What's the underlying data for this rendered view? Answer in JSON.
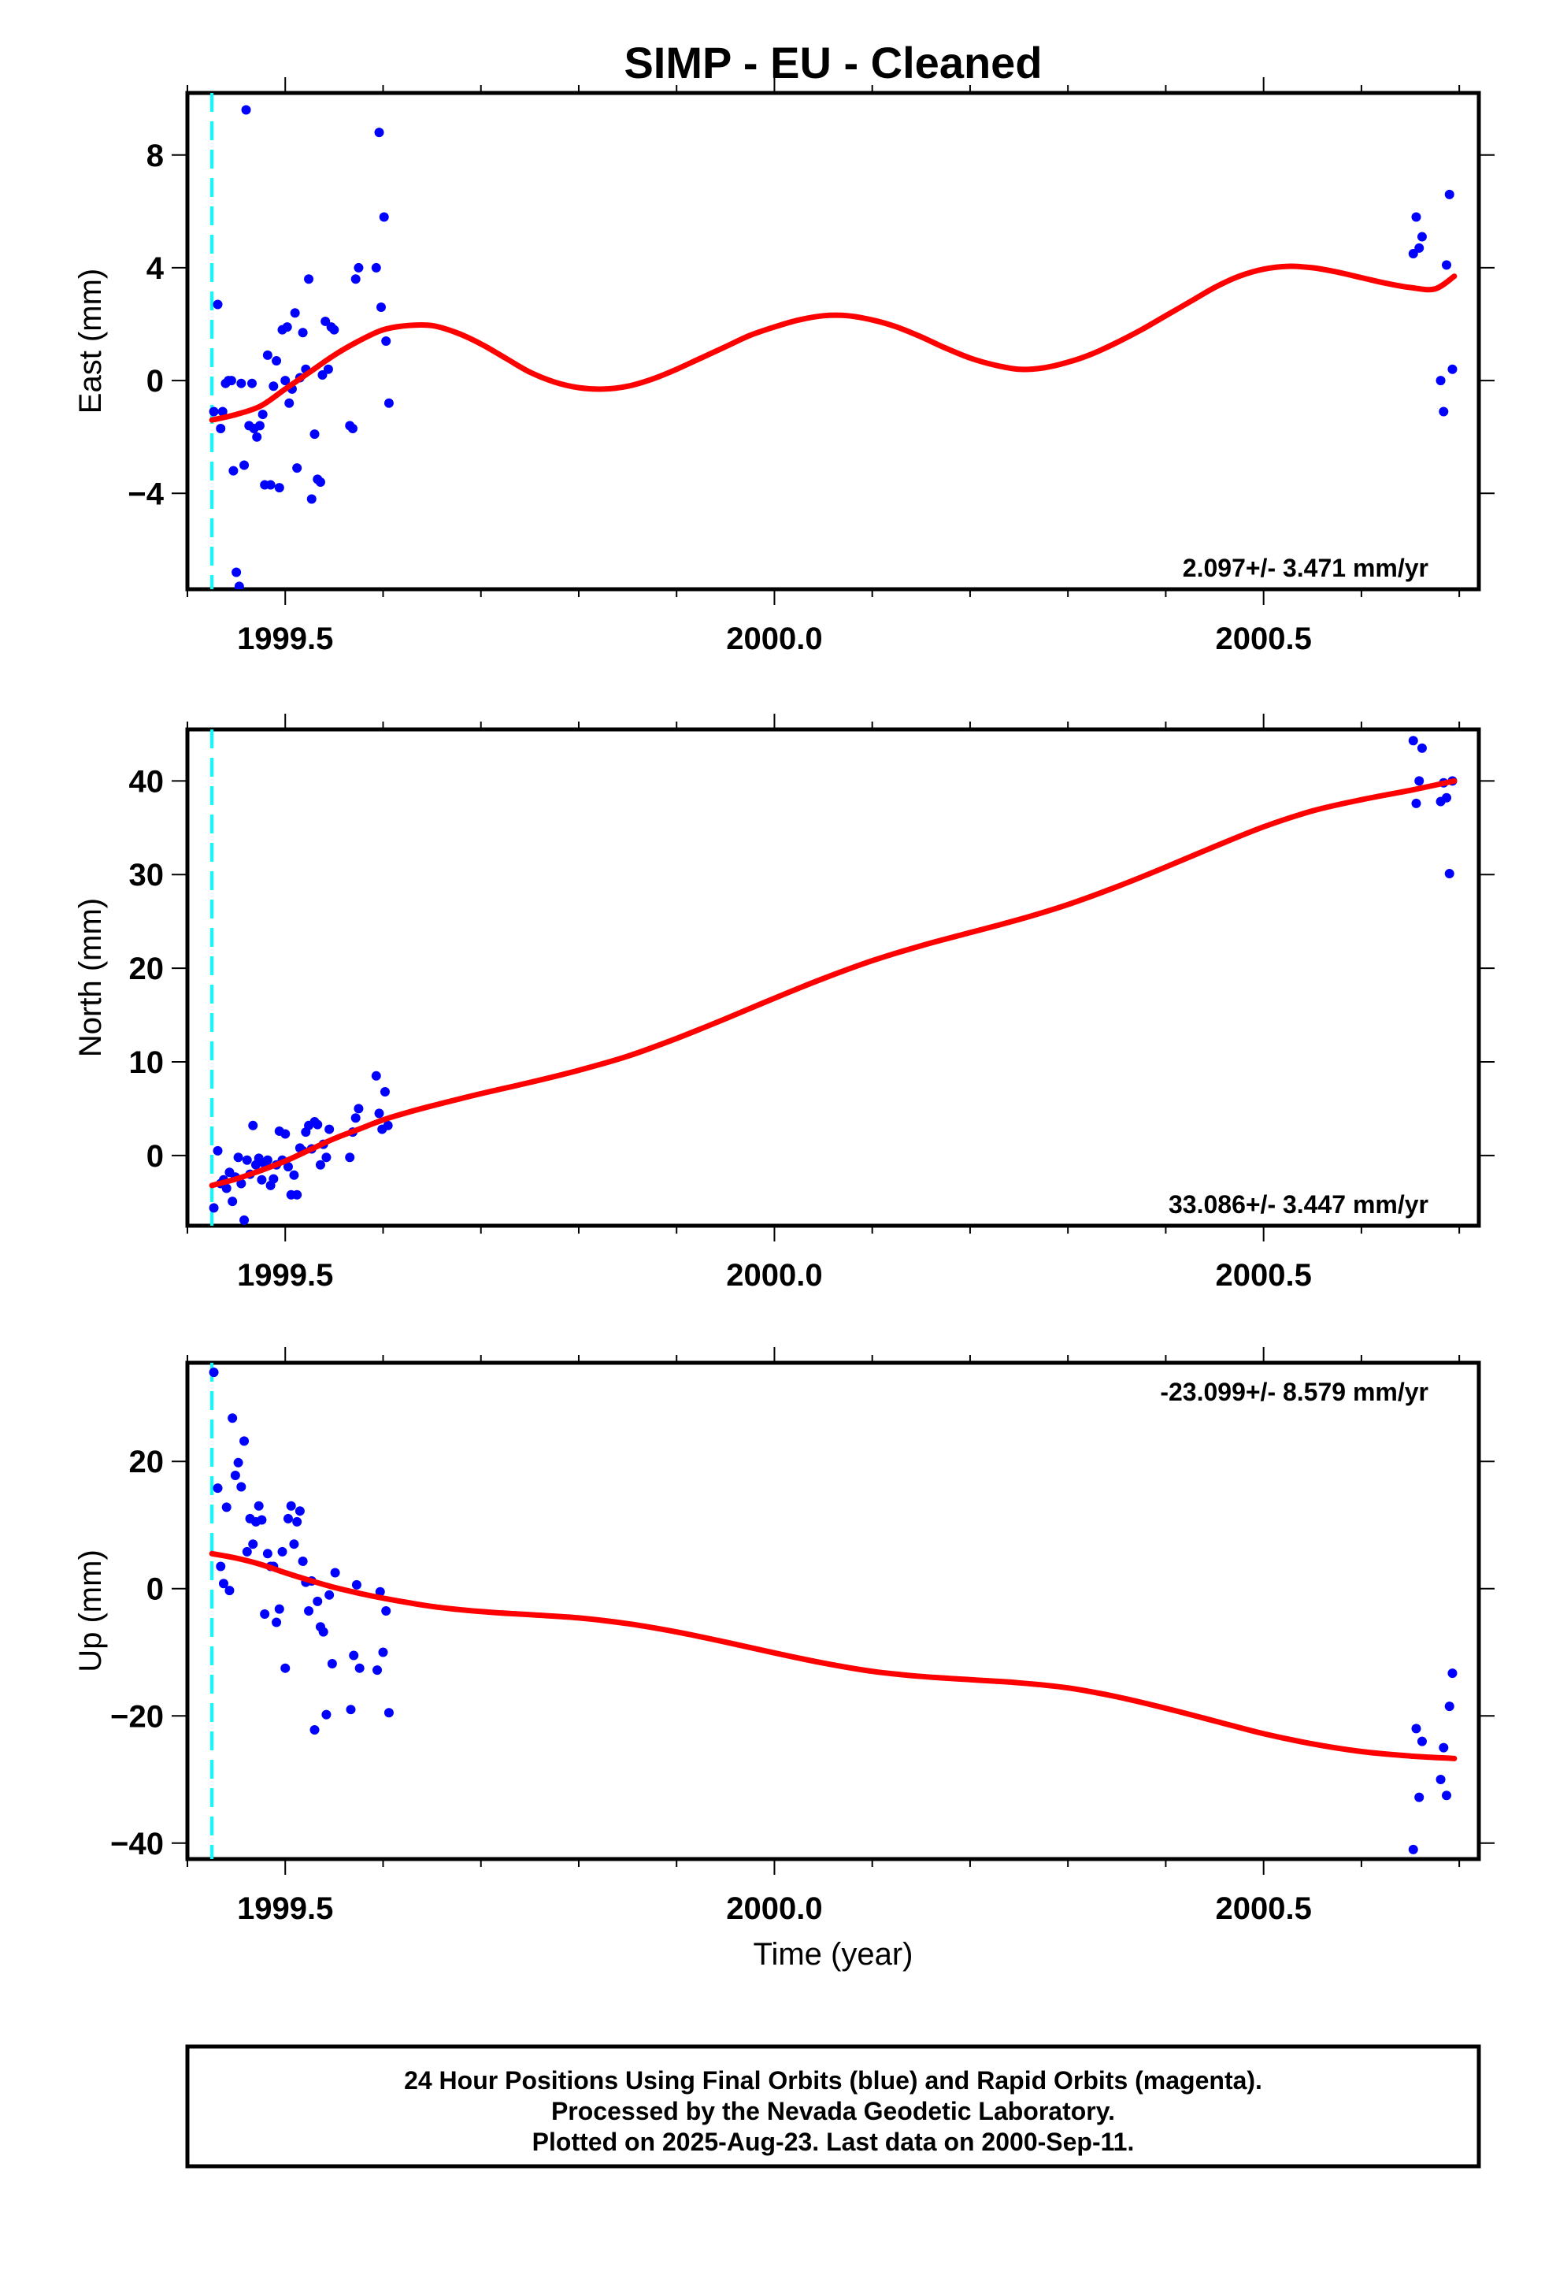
{
  "title": "SIMP  - EU - Cleaned",
  "colors": {
    "final_orbits": "#0000ff",
    "rapid_orbits": "#ff00ff",
    "trend": "#ff0000",
    "marker_line": "#00ffff"
  },
  "x_axis": {
    "label": "Time (year)",
    "range": [
      1999.4,
      2000.72
    ],
    "major_ticks": [
      1999.5,
      2000.0,
      2000.5
    ],
    "major_tick_labels": [
      "1999.5",
      "2000.0",
      "2000.5"
    ],
    "minor_step": 0.1
  },
  "marker_x": 1999.425,
  "footer": {
    "lines": [
      "24 Hour Positions Using Final Orbits (blue) and Rapid Orbits (magenta).",
      "Processed by the Nevada Geodetic Laboratory.",
      "Plotted on 2025-Aug-23. Last data on 2000-Sep-11."
    ]
  },
  "chart_data": [
    {
      "type": "scatter",
      "id": "east",
      "ylabel": "East (mm)",
      "ylim": [
        -7.4,
        10.2
      ],
      "yticks": [
        -4,
        0,
        4,
        8
      ],
      "ytick_labels": [
        "−4",
        "0",
        "4",
        "8"
      ],
      "rate_label": "2.097+/- 3.471 mm/yr",
      "rate_position": "bottom-right",
      "points": [
        [
          1999.427,
          -1.1
        ],
        [
          1999.431,
          2.7
        ],
        [
          1999.434,
          -1.7
        ],
        [
          1999.436,
          -1.1
        ],
        [
          1999.439,
          -0.1
        ],
        [
          1999.442,
          0.0
        ],
        [
          1999.445,
          0.0
        ],
        [
          1999.447,
          -3.2
        ],
        [
          1999.45,
          -6.8
        ],
        [
          1999.453,
          -7.3
        ],
        [
          1999.455,
          -0.1
        ],
        [
          1999.458,
          -3.0
        ],
        [
          1999.46,
          9.6
        ],
        [
          1999.463,
          -1.6
        ],
        [
          1999.466,
          -0.1
        ],
        [
          1999.468,
          -1.7
        ],
        [
          1999.471,
          -2.0
        ],
        [
          1999.474,
          -1.6
        ],
        [
          1999.477,
          -1.2
        ],
        [
          1999.479,
          -3.7
        ],
        [
          1999.482,
          0.9
        ],
        [
          1999.485,
          -3.7
        ],
        [
          1999.488,
          -0.2
        ],
        [
          1999.491,
          0.7
        ],
        [
          1999.494,
          -3.8
        ],
        [
          1999.497,
          1.8
        ],
        [
          1999.5,
          0.0
        ],
        [
          1999.502,
          1.9
        ],
        [
          1999.504,
          -0.8
        ],
        [
          1999.507,
          -0.3
        ],
        [
          1999.51,
          2.4
        ],
        [
          1999.512,
          -3.1
        ],
        [
          1999.515,
          0.1
        ],
        [
          1999.518,
          1.7
        ],
        [
          1999.521,
          0.4
        ],
        [
          1999.524,
          3.6
        ],
        [
          1999.527,
          -4.2
        ],
        [
          1999.53,
          -1.9
        ],
        [
          1999.533,
          -3.5
        ],
        [
          1999.536,
          -3.6
        ],
        [
          1999.538,
          0.2
        ],
        [
          1999.541,
          2.1
        ],
        [
          1999.544,
          0.4
        ],
        [
          1999.547,
          1.9
        ],
        [
          1999.55,
          1.8
        ],
        [
          1999.566,
          -1.6
        ],
        [
          1999.569,
          -1.7
        ],
        [
          1999.572,
          3.6
        ],
        [
          1999.575,
          4.0
        ],
        [
          1999.593,
          4.0
        ],
        [
          1999.596,
          8.8
        ],
        [
          1999.598,
          2.6
        ],
        [
          1999.601,
          5.8
        ],
        [
          1999.603,
          1.4
        ],
        [
          1999.606,
          -0.8
        ],
        [
          2000.653,
          4.5
        ],
        [
          2000.656,
          5.8
        ],
        [
          2000.659,
          4.7
        ],
        [
          2000.662,
          5.1
        ],
        [
          2000.681,
          0.0
        ],
        [
          2000.684,
          -1.1
        ],
        [
          2000.687,
          4.1
        ],
        [
          2000.69,
          6.6
        ],
        [
          2000.693,
          0.4
        ]
      ],
      "trend": [
        [
          1999.425,
          -1.4
        ],
        [
          1999.45,
          -1.2
        ],
        [
          1999.475,
          -0.9
        ],
        [
          1999.5,
          -0.3
        ],
        [
          1999.525,
          0.3
        ],
        [
          1999.55,
          0.9
        ],
        [
          1999.575,
          1.4
        ],
        [
          1999.6,
          1.8
        ],
        [
          1999.625,
          1.95
        ],
        [
          1999.65,
          1.95
        ],
        [
          1999.675,
          1.7
        ],
        [
          1999.7,
          1.3
        ],
        [
          1999.725,
          0.8
        ],
        [
          1999.75,
          0.3
        ],
        [
          1999.775,
          -0.05
        ],
        [
          1999.8,
          -0.25
        ],
        [
          1999.825,
          -0.3
        ],
        [
          1999.85,
          -0.2
        ],
        [
          1999.875,
          0.05
        ],
        [
          1999.9,
          0.4
        ],
        [
          1999.925,
          0.8
        ],
        [
          1999.95,
          1.2
        ],
        [
          1999.975,
          1.6
        ],
        [
          2000.0,
          1.9
        ],
        [
          2000.025,
          2.15
        ],
        [
          2000.05,
          2.3
        ],
        [
          2000.075,
          2.3
        ],
        [
          2000.1,
          2.15
        ],
        [
          2000.125,
          1.9
        ],
        [
          2000.15,
          1.55
        ],
        [
          2000.175,
          1.15
        ],
        [
          2000.2,
          0.8
        ],
        [
          2000.225,
          0.55
        ],
        [
          2000.25,
          0.4
        ],
        [
          2000.275,
          0.45
        ],
        [
          2000.3,
          0.65
        ],
        [
          2000.325,
          0.95
        ],
        [
          2000.35,
          1.35
        ],
        [
          2000.375,
          1.8
        ],
        [
          2000.4,
          2.3
        ],
        [
          2000.425,
          2.8
        ],
        [
          2000.45,
          3.3
        ],
        [
          2000.475,
          3.7
        ],
        [
          2000.5,
          3.95
        ],
        [
          2000.525,
          4.05
        ],
        [
          2000.55,
          4.0
        ],
        [
          2000.575,
          3.85
        ],
        [
          2000.6,
          3.65
        ],
        [
          2000.625,
          3.45
        ],
        [
          2000.65,
          3.3
        ],
        [
          2000.675,
          3.25
        ],
        [
          2000.695,
          3.7
        ]
      ]
    },
    {
      "type": "scatter",
      "id": "north",
      "ylabel": "North (mm)",
      "ylim": [
        -7.5,
        45.5
      ],
      "yticks": [
        0,
        10,
        20,
        30,
        40
      ],
      "ytick_labels": [
        "0",
        "10",
        "20",
        "30",
        "40"
      ],
      "rate_label": "33.086+/- 3.447 mm/yr",
      "rate_position": "bottom-right",
      "points": [
        [
          1999.427,
          -5.6
        ],
        [
          1999.431,
          0.5
        ],
        [
          1999.434,
          -3.0
        ],
        [
          1999.437,
          -2.6
        ],
        [
          1999.44,
          -3.5
        ],
        [
          1999.443,
          -1.8
        ],
        [
          1999.446,
          -4.9
        ],
        [
          1999.449,
          -2.3
        ],
        [
          1999.452,
          -0.2
        ],
        [
          1999.455,
          -3.0
        ],
        [
          1999.458,
          -6.9
        ],
        [
          1999.461,
          -0.5
        ],
        [
          1999.464,
          -2.0
        ],
        [
          1999.467,
          3.2
        ],
        [
          1999.47,
          -1.0
        ],
        [
          1999.473,
          -0.3
        ],
        [
          1999.476,
          -2.6
        ],
        [
          1999.479,
          -0.9
        ],
        [
          1999.482,
          -0.5
        ],
        [
          1999.485,
          -3.2
        ],
        [
          1999.488,
          -2.5
        ],
        [
          1999.491,
          -1.0
        ],
        [
          1999.494,
          2.6
        ],
        [
          1999.497,
          -0.5
        ],
        [
          1999.5,
          2.3
        ],
        [
          1999.503,
          -1.2
        ],
        [
          1999.506,
          -4.2
        ],
        [
          1999.509,
          -2.1
        ],
        [
          1999.512,
          -4.2
        ],
        [
          1999.515,
          0.8
        ],
        [
          1999.518,
          0.5
        ],
        [
          1999.521,
          2.5
        ],
        [
          1999.524,
          3.2
        ],
        [
          1999.527,
          0.7
        ],
        [
          1999.53,
          3.6
        ],
        [
          1999.533,
          3.3
        ],
        [
          1999.536,
          -1.0
        ],
        [
          1999.539,
          1.2
        ],
        [
          1999.542,
          -0.2
        ],
        [
          1999.545,
          2.8
        ],
        [
          1999.566,
          -0.2
        ],
        [
          1999.569,
          2.5
        ],
        [
          1999.572,
          4.0
        ],
        [
          1999.575,
          5.0
        ],
        [
          1999.593,
          8.5
        ],
        [
          1999.596,
          4.5
        ],
        [
          1999.599,
          2.8
        ],
        [
          1999.602,
          6.8
        ],
        [
          1999.605,
          3.2
        ],
        [
          2000.653,
          44.3
        ],
        [
          2000.656,
          37.6
        ],
        [
          2000.659,
          40.0
        ],
        [
          2000.662,
          43.5
        ],
        [
          2000.681,
          37.8
        ],
        [
          2000.684,
          39.8
        ],
        [
          2000.687,
          38.2
        ],
        [
          2000.69,
          30.1
        ],
        [
          2000.693,
          40.0
        ]
      ],
      "trend": [
        [
          1999.425,
          -3.2
        ],
        [
          1999.45,
          -2.5
        ],
        [
          1999.475,
          -1.6
        ],
        [
          1999.5,
          -0.6
        ],
        [
          1999.525,
          0.6
        ],
        [
          1999.55,
          1.8
        ],
        [
          1999.575,
          2.8
        ],
        [
          1999.6,
          3.8
        ],
        [
          1999.625,
          4.6
        ],
        [
          1999.65,
          5.3
        ],
        [
          1999.7,
          6.6
        ],
        [
          1999.75,
          7.8
        ],
        [
          1999.8,
          9.1
        ],
        [
          1999.85,
          10.6
        ],
        [
          1999.9,
          12.5
        ],
        [
          1999.95,
          14.6
        ],
        [
          2000.0,
          16.8
        ],
        [
          2000.05,
          18.9
        ],
        [
          2000.1,
          20.8
        ],
        [
          2000.15,
          22.4
        ],
        [
          2000.2,
          23.8
        ],
        [
          2000.25,
          25.2
        ],
        [
          2000.3,
          26.8
        ],
        [
          2000.35,
          28.7
        ],
        [
          2000.4,
          30.8
        ],
        [
          2000.45,
          33.0
        ],
        [
          2000.5,
          35.1
        ],
        [
          2000.55,
          36.8
        ],
        [
          2000.6,
          38.0
        ],
        [
          2000.65,
          39.0
        ],
        [
          2000.695,
          40.0
        ]
      ]
    },
    {
      "type": "scatter",
      "id": "up",
      "ylabel": "Up (mm)",
      "ylim": [
        -42.5,
        35.5
      ],
      "yticks": [
        -40,
        -20,
        0,
        20
      ],
      "ytick_labels": [
        "−40",
        "−20",
        "0",
        "20"
      ],
      "rate_label": "-23.099+/- 8.579 mm/yr",
      "rate_position": "top-right",
      "points": [
        [
          1999.427,
          34.0
        ],
        [
          1999.431,
          15.8
        ],
        [
          1999.434,
          3.5
        ],
        [
          1999.437,
          0.8
        ],
        [
          1999.44,
          12.8
        ],
        [
          1999.443,
          -0.3
        ],
        [
          1999.446,
          26.8
        ],
        [
          1999.449,
          17.8
        ],
        [
          1999.452,
          19.8
        ],
        [
          1999.455,
          16.0
        ],
        [
          1999.458,
          23.2
        ],
        [
          1999.461,
          5.8
        ],
        [
          1999.464,
          11.0
        ],
        [
          1999.467,
          7.0
        ],
        [
          1999.47,
          10.5
        ],
        [
          1999.473,
          13.0
        ],
        [
          1999.476,
          10.8
        ],
        [
          1999.479,
          -4.0
        ],
        [
          1999.482,
          5.5
        ],
        [
          1999.485,
          3.5
        ],
        [
          1999.488,
          3.5
        ],
        [
          1999.491,
          -5.3
        ],
        [
          1999.494,
          -3.2
        ],
        [
          1999.497,
          5.8
        ],
        [
          1999.5,
          -12.5
        ],
        [
          1999.503,
          11.0
        ],
        [
          1999.506,
          13.0
        ],
        [
          1999.509,
          7.0
        ],
        [
          1999.512,
          10.5
        ],
        [
          1999.515,
          12.2
        ],
        [
          1999.518,
          4.3
        ],
        [
          1999.521,
          1.0
        ],
        [
          1999.524,
          -3.5
        ],
        [
          1999.527,
          1.2
        ],
        [
          1999.53,
          -22.2
        ],
        [
          1999.533,
          -2.0
        ],
        [
          1999.536,
          -6.0
        ],
        [
          1999.539,
          -6.8
        ],
        [
          1999.542,
          -19.8
        ],
        [
          1999.545,
          -1.0
        ],
        [
          1999.548,
          -11.8
        ],
        [
          1999.551,
          2.5
        ],
        [
          1999.567,
          -19.0
        ],
        [
          1999.57,
          -10.5
        ],
        [
          1999.573,
          0.6
        ],
        [
          1999.576,
          -12.5
        ],
        [
          1999.594,
          -12.8
        ],
        [
          1999.597,
          -0.5
        ],
        [
          1999.6,
          -10.0
        ],
        [
          1999.603,
          -3.5
        ],
        [
          1999.606,
          -19.5
        ],
        [
          2000.653,
          -41.0
        ],
        [
          2000.656,
          -22.0
        ],
        [
          2000.659,
          -32.8
        ],
        [
          2000.662,
          -24.0
        ],
        [
          2000.681,
          -30.0
        ],
        [
          2000.684,
          -25.0
        ],
        [
          2000.687,
          -32.5
        ],
        [
          2000.69,
          -18.5
        ],
        [
          2000.693,
          -13.3
        ]
      ],
      "trend": [
        [
          1999.425,
          5.5
        ],
        [
          1999.45,
          4.8
        ],
        [
          1999.475,
          3.8
        ],
        [
          1999.5,
          2.5
        ],
        [
          1999.525,
          1.3
        ],
        [
          1999.55,
          0.2
        ],
        [
          1999.575,
          -0.7
        ],
        [
          1999.6,
          -1.5
        ],
        [
          1999.65,
          -2.8
        ],
        [
          1999.7,
          -3.6
        ],
        [
          1999.75,
          -4.1
        ],
        [
          1999.8,
          -4.6
        ],
        [
          1999.85,
          -5.5
        ],
        [
          1999.9,
          -6.8
        ],
        [
          1999.95,
          -8.4
        ],
        [
          2000.0,
          -10.1
        ],
        [
          2000.05,
          -11.7
        ],
        [
          2000.1,
          -13.0
        ],
        [
          2000.15,
          -13.8
        ],
        [
          2000.2,
          -14.3
        ],
        [
          2000.25,
          -14.8
        ],
        [
          2000.3,
          -15.6
        ],
        [
          2000.35,
          -17.0
        ],
        [
          2000.4,
          -18.8
        ],
        [
          2000.45,
          -20.8
        ],
        [
          2000.5,
          -22.8
        ],
        [
          2000.55,
          -24.4
        ],
        [
          2000.6,
          -25.6
        ],
        [
          2000.65,
          -26.3
        ],
        [
          2000.695,
          -26.7
        ]
      ]
    }
  ]
}
